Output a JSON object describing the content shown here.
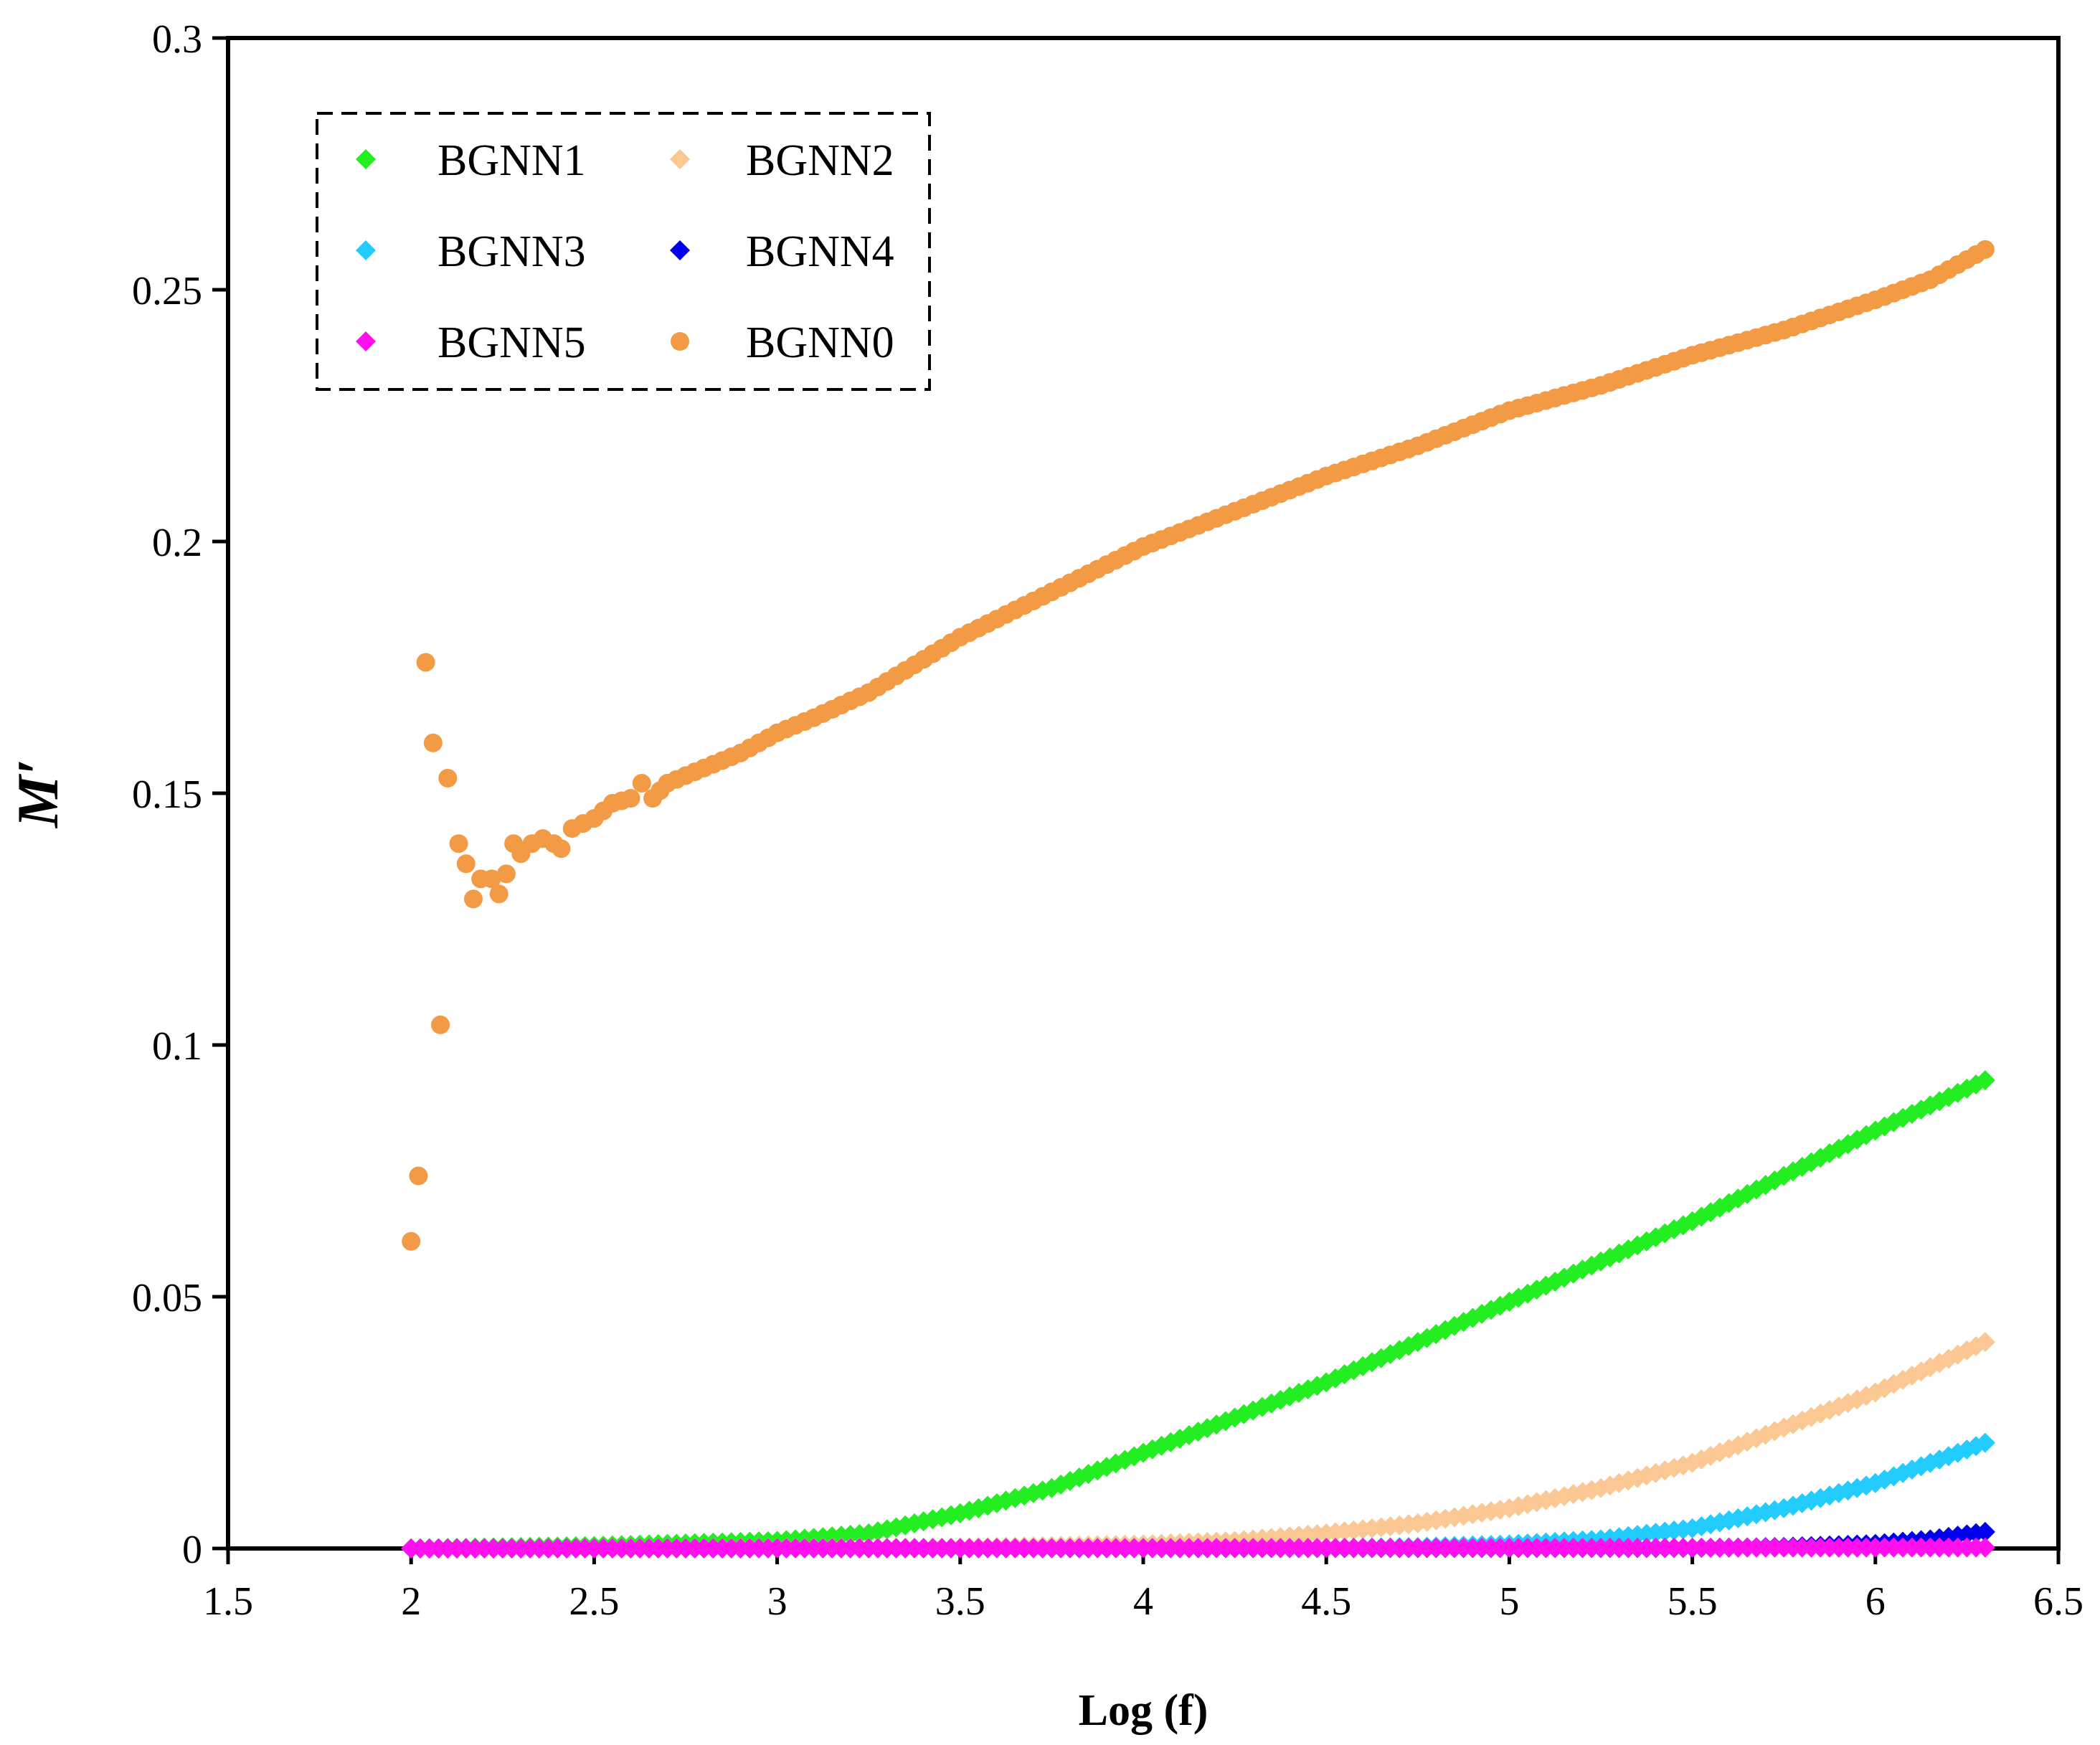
{
  "chart_data": {
    "type": "scatter",
    "title": "",
    "xlabel": "Log (f)",
    "ylabel": "M′",
    "xlim": [
      1.5,
      6.5
    ],
    "ylim": [
      0,
      0.3
    ],
    "x_ticks": [
      "1.5",
      "2",
      "2.5",
      "3",
      "3.5",
      "4",
      "4.5",
      "5",
      "5.5",
      "6",
      "6.5"
    ],
    "y_ticks": [
      "0",
      "0.05",
      "0.1",
      "0.15",
      "0.2",
      "0.25",
      "0.3"
    ],
    "grid": false,
    "legend_position": "top-left",
    "series": [
      {
        "name": "BGNN1",
        "marker": "diamond",
        "color": "#22ee22",
        "points": [
          [
            2.0,
            0.0
          ],
          [
            2.5,
            0.0005
          ],
          [
            3.0,
            0.0015
          ],
          [
            3.25,
            0.003
          ],
          [
            3.5,
            0.007
          ],
          [
            3.75,
            0.012
          ],
          [
            4.0,
            0.019
          ],
          [
            4.25,
            0.026
          ],
          [
            4.5,
            0.033
          ],
          [
            4.75,
            0.041
          ],
          [
            5.0,
            0.049
          ],
          [
            5.25,
            0.057
          ],
          [
            5.5,
            0.065
          ],
          [
            5.75,
            0.074
          ],
          [
            6.0,
            0.083
          ],
          [
            6.3,
            0.093
          ]
        ]
      },
      {
        "name": "BGNN2",
        "marker": "diamond",
        "color": "#fbc894",
        "points": [
          [
            2.0,
            0.0
          ],
          [
            3.5,
            0.0002
          ],
          [
            4.0,
            0.0008
          ],
          [
            4.25,
            0.0015
          ],
          [
            4.5,
            0.003
          ],
          [
            4.75,
            0.005
          ],
          [
            5.0,
            0.008
          ],
          [
            5.25,
            0.012
          ],
          [
            5.5,
            0.017
          ],
          [
            5.75,
            0.024
          ],
          [
            6.0,
            0.031
          ],
          [
            6.3,
            0.041
          ]
        ]
      },
      {
        "name": "BGNN3",
        "marker": "diamond",
        "color": "#22ccff",
        "points": [
          [
            2.0,
            0.0
          ],
          [
            4.5,
            0.0001
          ],
          [
            4.75,
            0.0003
          ],
          [
            5.0,
            0.0008
          ],
          [
            5.25,
            0.0018
          ],
          [
            5.5,
            0.004
          ],
          [
            5.75,
            0.008
          ],
          [
            6.0,
            0.013
          ],
          [
            6.3,
            0.021
          ]
        ]
      },
      {
        "name": "BGNN4",
        "marker": "diamond",
        "color": "#0000ee",
        "points": [
          [
            2.0,
            0.0
          ],
          [
            5.5,
            0.0001
          ],
          [
            5.75,
            0.0003
          ],
          [
            6.0,
            0.0009
          ],
          [
            6.15,
            0.0018
          ],
          [
            6.3,
            0.0033
          ]
        ]
      },
      {
        "name": "BGNN5",
        "marker": "diamond",
        "color": "#ff11ee",
        "points": [
          [
            2.0,
            0.0
          ],
          [
            6.3,
            0.0002
          ]
        ]
      },
      {
        "name": "BGNN0",
        "marker": "circle",
        "color": "#f39a44",
        "points": [
          [
            2.0,
            0.061
          ],
          [
            2.02,
            0.074
          ],
          [
            2.04,
            0.176
          ],
          [
            2.06,
            0.16
          ],
          [
            2.08,
            0.104
          ],
          [
            2.1,
            0.153
          ],
          [
            2.13,
            0.14
          ],
          [
            2.15,
            0.136
          ],
          [
            2.17,
            0.129
          ],
          [
            2.19,
            0.133
          ],
          [
            2.22,
            0.133
          ],
          [
            2.24,
            0.13
          ],
          [
            2.26,
            0.134
          ],
          [
            2.28,
            0.14
          ],
          [
            2.3,
            0.138
          ],
          [
            2.33,
            0.14
          ],
          [
            2.36,
            0.141
          ],
          [
            2.39,
            0.14
          ],
          [
            2.41,
            0.139
          ],
          [
            2.44,
            0.143
          ],
          [
            2.5,
            0.145
          ],
          [
            2.55,
            0.148
          ],
          [
            2.6,
            0.149
          ],
          [
            2.63,
            0.152
          ],
          [
            2.66,
            0.149
          ],
          [
            2.7,
            0.152
          ],
          [
            2.8,
            0.155
          ],
          [
            2.9,
            0.158
          ],
          [
            3.0,
            0.162
          ],
          [
            3.1,
            0.165
          ],
          [
            3.25,
            0.17
          ],
          [
            3.5,
            0.181
          ],
          [
            3.75,
            0.19
          ],
          [
            4.0,
            0.199
          ],
          [
            4.25,
            0.206
          ],
          [
            4.5,
            0.213
          ],
          [
            4.75,
            0.219
          ],
          [
            5.0,
            0.226
          ],
          [
            5.25,
            0.231
          ],
          [
            5.5,
            0.237
          ],
          [
            5.75,
            0.242
          ],
          [
            6.0,
            0.248
          ],
          [
            6.15,
            0.252
          ],
          [
            6.3,
            0.258
          ]
        ]
      }
    ]
  }
}
